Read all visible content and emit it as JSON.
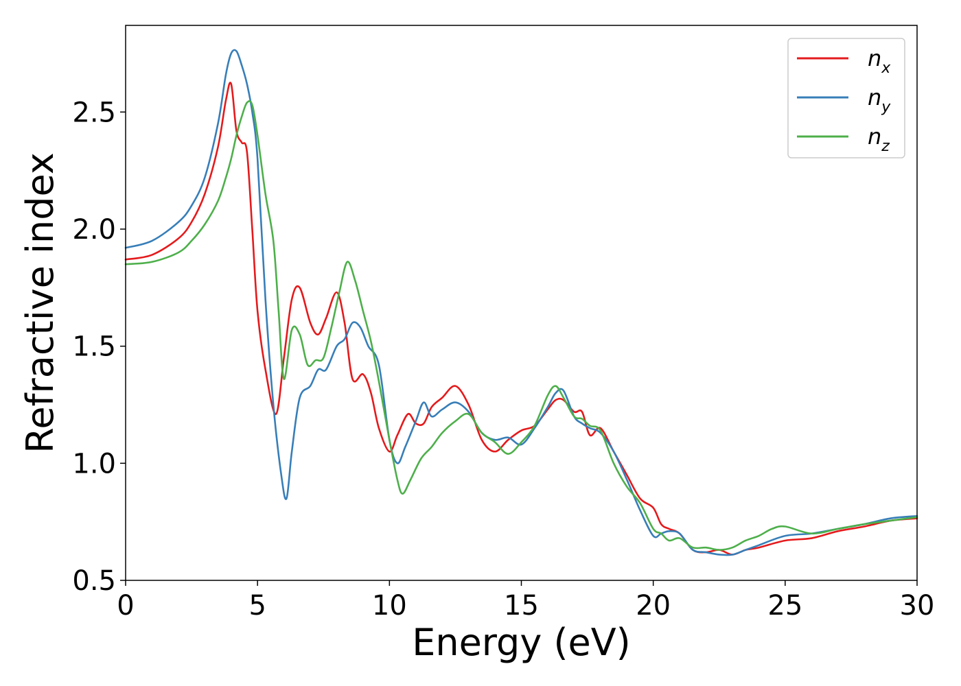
{
  "chart_data": {
    "type": "line",
    "xlabel": "Energy (eV)",
    "ylabel": "Refractive index",
    "xlim": [
      0,
      30
    ],
    "ylim": [
      0.5,
      2.87
    ],
    "xticks": [
      0,
      5,
      10,
      15,
      20,
      25,
      30
    ],
    "xtick_labels": [
      "0",
      "5",
      "10",
      "15",
      "20",
      "25",
      "30"
    ],
    "yticks": [
      0.5,
      1.0,
      1.5,
      2.0,
      2.5
    ],
    "ytick_labels": [
      "0.5",
      "1.0",
      "1.5",
      "2.0",
      "2.5"
    ],
    "grid": false,
    "legend_position": "top-right",
    "series": [
      {
        "name": "n",
        "subscript": "x",
        "color": "#e41a1c",
        "x": [
          0,
          1,
          2,
          2.5,
          3,
          3.5,
          3.8,
          4.0,
          4.2,
          4.4,
          4.6,
          4.8,
          5.0,
          5.3,
          5.7,
          6.0,
          6.3,
          6.6,
          7.0,
          7.3,
          7.6,
          8.0,
          8.3,
          8.6,
          9.0,
          9.3,
          9.6,
          10.0,
          10.3,
          10.7,
          11.0,
          11.3,
          11.6,
          12.0,
          12.5,
          13.0,
          13.5,
          14.0,
          14.5,
          15.0,
          15.5,
          16.0,
          16.3,
          16.6,
          17.0,
          17.3,
          17.6,
          18.0,
          18.5,
          19.0,
          19.5,
          20.0,
          20.3,
          20.6,
          21.0,
          21.5,
          22.0,
          22.5,
          23.0,
          23.5,
          24.0,
          25.0,
          26.0,
          27.0,
          28.0,
          29.0,
          30.0
        ],
        "y": [
          1.87,
          1.89,
          1.96,
          2.03,
          2.15,
          2.35,
          2.55,
          2.62,
          2.42,
          2.37,
          2.33,
          2.0,
          1.65,
          1.4,
          1.21,
          1.45,
          1.7,
          1.75,
          1.6,
          1.55,
          1.62,
          1.73,
          1.6,
          1.36,
          1.38,
          1.3,
          1.15,
          1.05,
          1.12,
          1.21,
          1.17,
          1.17,
          1.24,
          1.28,
          1.33,
          1.25,
          1.1,
          1.05,
          1.1,
          1.14,
          1.16,
          1.23,
          1.27,
          1.27,
          1.22,
          1.22,
          1.12,
          1.15,
          1.05,
          0.95,
          0.85,
          0.81,
          0.74,
          0.72,
          0.7,
          0.63,
          0.62,
          0.63,
          0.61,
          0.63,
          0.64,
          0.67,
          0.68,
          0.71,
          0.73,
          0.755,
          0.765
        ]
      },
      {
        "name": "n",
        "subscript": "y",
        "color": "#377eb8",
        "x": [
          0,
          1,
          2,
          2.5,
          3,
          3.5,
          3.8,
          4.0,
          4.2,
          4.4,
          4.6,
          4.8,
          5.0,
          5.3,
          5.6,
          5.9,
          6.1,
          6.3,
          6.6,
          7.0,
          7.3,
          7.6,
          8.0,
          8.3,
          8.6,
          8.9,
          9.2,
          9.6,
          10.0,
          10.3,
          10.6,
          11.0,
          11.3,
          11.6,
          12.0,
          12.5,
          13.0,
          13.5,
          14.0,
          14.5,
          15.0,
          15.5,
          16.0,
          16.3,
          16.6,
          17.0,
          17.3,
          17.6,
          18.0,
          18.5,
          19.0,
          19.5,
          20.0,
          20.3,
          20.6,
          21.0,
          21.5,
          22.0,
          22.5,
          23.0,
          23.5,
          24.0,
          25.0,
          26.0,
          27.0,
          28.0,
          29.0,
          30.0
        ],
        "y": [
          1.92,
          1.95,
          2.03,
          2.1,
          2.22,
          2.45,
          2.66,
          2.75,
          2.76,
          2.7,
          2.62,
          2.5,
          2.3,
          1.7,
          1.25,
          0.95,
          0.85,
          1.05,
          1.28,
          1.33,
          1.4,
          1.4,
          1.5,
          1.53,
          1.6,
          1.58,
          1.5,
          1.42,
          1.1,
          1.0,
          1.07,
          1.18,
          1.26,
          1.2,
          1.23,
          1.26,
          1.22,
          1.13,
          1.1,
          1.11,
          1.08,
          1.15,
          1.24,
          1.3,
          1.31,
          1.2,
          1.17,
          1.15,
          1.13,
          1.05,
          0.93,
          0.8,
          0.69,
          0.7,
          0.71,
          0.7,
          0.63,
          0.62,
          0.61,
          0.61,
          0.63,
          0.65,
          0.69,
          0.7,
          0.72,
          0.74,
          0.765,
          0.775
        ]
      },
      {
        "name": "n",
        "subscript": "z",
        "color": "#4daf4a",
        "x": [
          0,
          1,
          2,
          2.5,
          3,
          3.5,
          3.8,
          4.0,
          4.2,
          4.4,
          4.6,
          4.8,
          5.0,
          5.3,
          5.6,
          5.8,
          6.0,
          6.3,
          6.6,
          6.9,
          7.2,
          7.5,
          7.8,
          8.1,
          8.4,
          8.7,
          9.0,
          9.3,
          9.6,
          10.0,
          10.3,
          10.5,
          10.8,
          11.2,
          11.6,
          12.0,
          12.5,
          13.0,
          13.5,
          14.0,
          14.5,
          15.0,
          15.5,
          16.0,
          16.3,
          16.6,
          17.0,
          17.3,
          17.6,
          18.0,
          18.5,
          19.0,
          19.5,
          20.0,
          20.3,
          20.6,
          21.0,
          21.5,
          22.0,
          22.5,
          23.0,
          23.5,
          24.0,
          24.5,
          25.0,
          26.0,
          27.0,
          28.0,
          29.0,
          30.0
        ],
        "y": [
          1.85,
          1.86,
          1.9,
          1.95,
          2.02,
          2.12,
          2.22,
          2.3,
          2.4,
          2.48,
          2.54,
          2.53,
          2.4,
          2.15,
          1.95,
          1.65,
          1.36,
          1.57,
          1.55,
          1.42,
          1.44,
          1.45,
          1.58,
          1.73,
          1.86,
          1.78,
          1.65,
          1.52,
          1.35,
          1.1,
          0.93,
          0.87,
          0.93,
          1.02,
          1.07,
          1.13,
          1.18,
          1.21,
          1.13,
          1.09,
          1.04,
          1.09,
          1.16,
          1.29,
          1.33,
          1.28,
          1.2,
          1.19,
          1.16,
          1.14,
          1.0,
          0.9,
          0.83,
          0.72,
          0.7,
          0.67,
          0.68,
          0.64,
          0.64,
          0.63,
          0.64,
          0.67,
          0.69,
          0.72,
          0.73,
          0.7,
          0.72,
          0.74,
          0.755,
          0.77
        ]
      }
    ]
  }
}
